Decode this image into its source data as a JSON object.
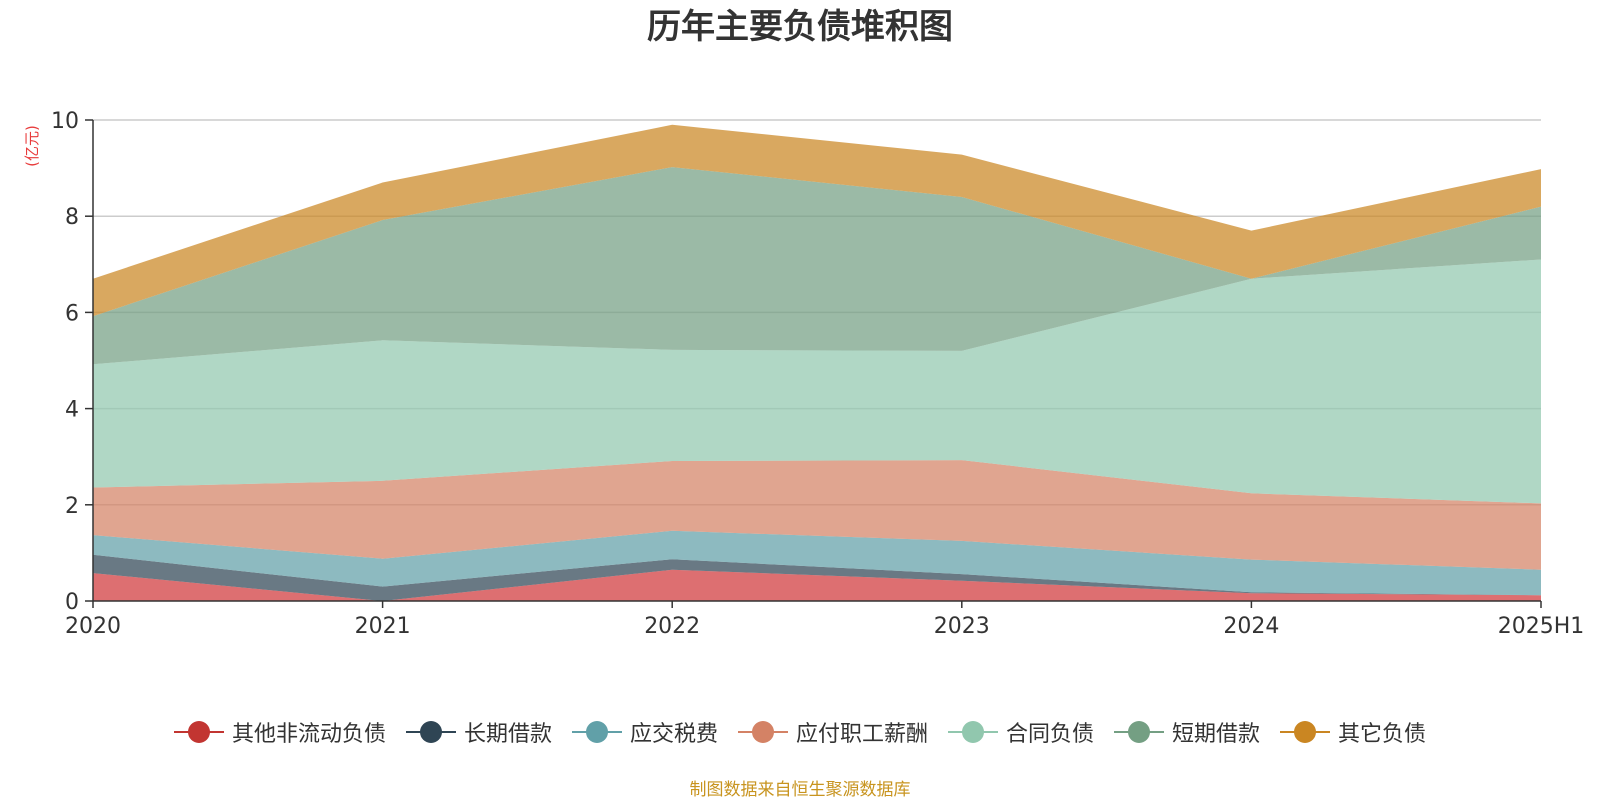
{
  "chart_data": {
    "type": "area",
    "stacked": true,
    "title": "历年主要负债堆积图",
    "unit_label": "(亿元)",
    "xlabel": "",
    "ylabel": "",
    "categories": [
      "2020",
      "2021",
      "2022",
      "2023",
      "2024",
      "2025H1"
    ],
    "ylim": [
      0,
      10
    ],
    "yticks": [
      "0",
      "2",
      "4",
      "6",
      "8",
      "10"
    ],
    "grid": true,
    "legend_position": "bottom",
    "series": [
      {
        "name": "其他非流动负债",
        "color": "#d0383a",
        "legend_color": "#c23531",
        "values": [
          0.58,
          0.0,
          0.65,
          0.42,
          0.16,
          0.12
        ]
      },
      {
        "name": "长期借款",
        "color": "#2f4554",
        "legend_color": "#2f4554",
        "values": [
          0.38,
          0.3,
          0.22,
          0.14,
          0.02,
          0.0
        ]
      },
      {
        "name": "应交税费",
        "color": "#61a0a8",
        "legend_color": "#61a0a8",
        "values": [
          0.41,
          0.58,
          0.59,
          0.69,
          0.68,
          0.53
        ]
      },
      {
        "name": "应付职工薪酬",
        "color": "#d48265",
        "legend_color": "#d48265",
        "values": [
          0.99,
          1.62,
          1.45,
          1.68,
          1.38,
          1.38
        ]
      },
      {
        "name": "合同负债",
        "color": "#91c7ae",
        "legend_color": "#91c7ae",
        "values": [
          2.56,
          2.92,
          2.31,
          2.27,
          4.46,
          5.07
        ]
      },
      {
        "name": "短期借款",
        "color": "#749f83",
        "legend_color": "#749f83",
        "values": [
          1.0,
          2.5,
          3.8,
          3.2,
          0.0,
          1.1
        ]
      },
      {
        "name": "其它负债",
        "color": "#ca8622",
        "legend_color": "#ca8622",
        "values": [
          0.78,
          0.78,
          0.88,
          0.88,
          1.0,
          0.78
        ]
      }
    ]
  },
  "source_note": "制图数据来自恒生聚源数据库"
}
